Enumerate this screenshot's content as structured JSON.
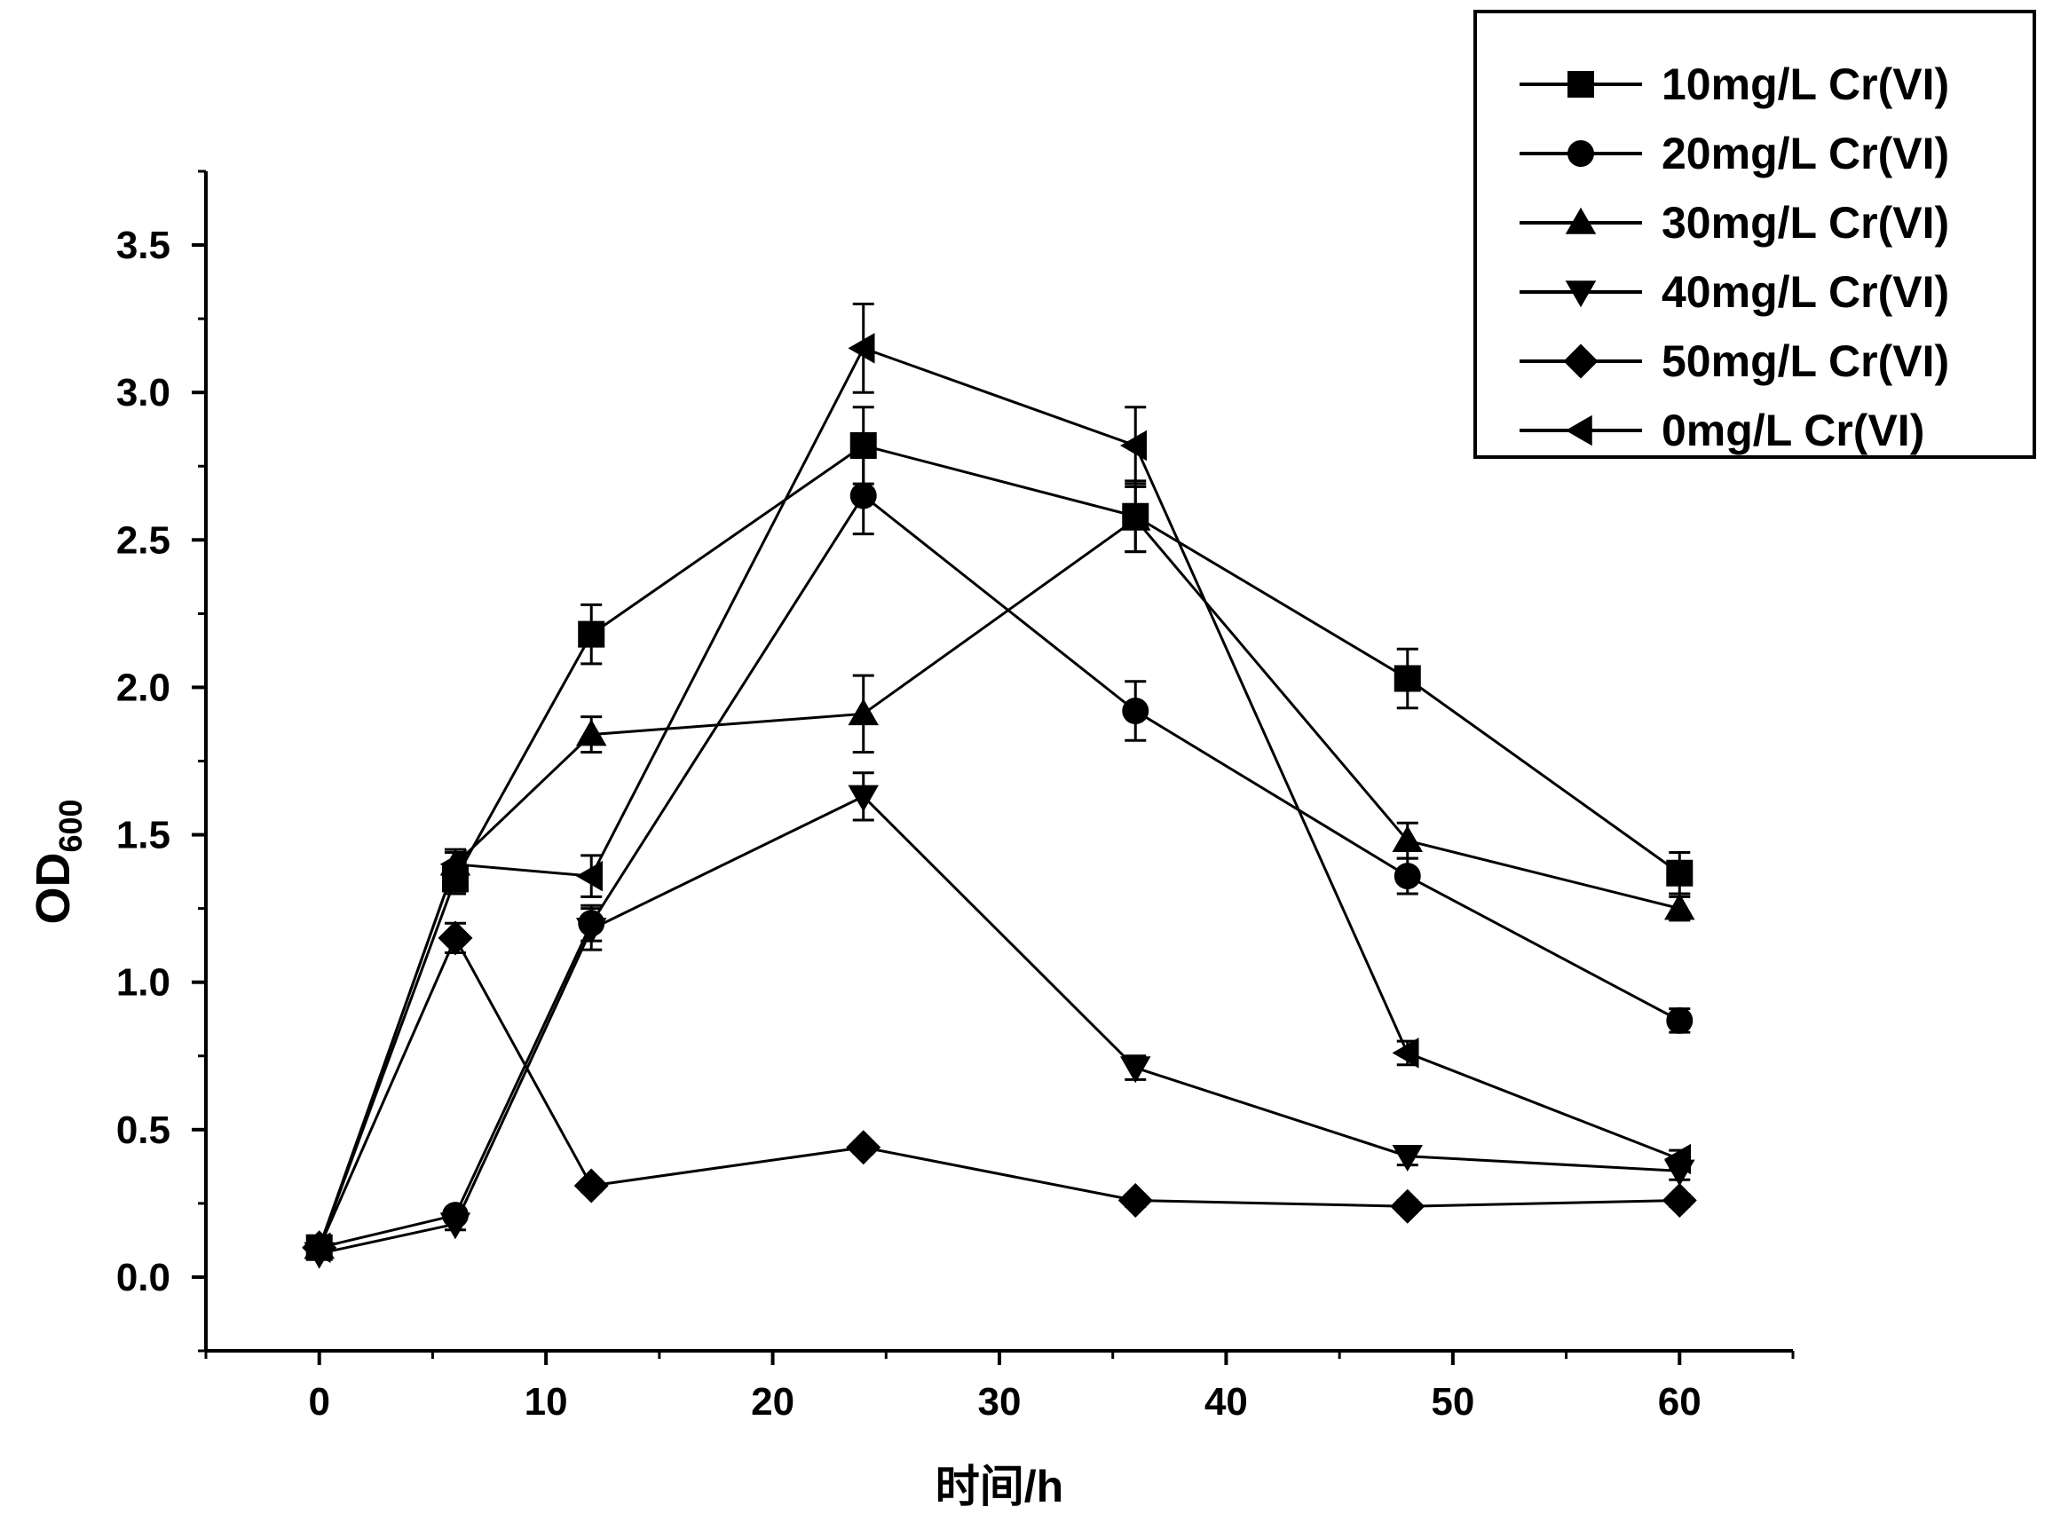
{
  "chart_data": {
    "type": "line",
    "xlabel": "时间/h",
    "ylabel_main": "OD",
    "ylabel_sub": "600",
    "xlim": [
      -5,
      65
    ],
    "ylim": [
      -0.25,
      3.75
    ],
    "xticks": [
      0,
      10,
      20,
      30,
      40,
      50,
      60
    ],
    "yticks": [
      0.0,
      0.5,
      1.0,
      1.5,
      2.0,
      2.5,
      3.0,
      3.5
    ],
    "xtick_labels": [
      "0",
      "10",
      "20",
      "30",
      "40",
      "50",
      "60"
    ],
    "ytick_labels": [
      "0.0",
      "0.5",
      "1.0",
      "1.5",
      "2.0",
      "2.5",
      "3.0",
      "3.5"
    ],
    "legend_position": "top-right",
    "x": [
      0,
      6,
      12,
      24,
      36,
      48,
      60
    ],
    "series": [
      {
        "name": "10mg/L Cr(VI)",
        "marker": "square",
        "values": [
          0.1,
          1.35,
          2.18,
          2.82,
          2.58,
          2.03,
          1.37
        ],
        "errors": [
          0.02,
          0.05,
          0.1,
          0.13,
          0.12,
          0.1,
          0.07
        ]
      },
      {
        "name": "20mg/L Cr(VI)",
        "marker": "circle",
        "values": [
          0.1,
          0.21,
          1.2,
          2.65,
          1.92,
          1.36,
          0.87
        ],
        "errors": [
          0.02,
          0.02,
          0.06,
          0.13,
          0.1,
          0.06,
          0.04
        ]
      },
      {
        "name": "30mg/L Cr(VI)",
        "marker": "triangle-up",
        "values": [
          0.1,
          1.4,
          1.84,
          1.91,
          2.57,
          1.48,
          1.25
        ],
        "errors": [
          0.02,
          0.04,
          0.06,
          0.13,
          0.11,
          0.06,
          0.04
        ]
      },
      {
        "name": "40mg/L Cr(VI)",
        "marker": "triangle-down",
        "values": [
          0.08,
          0.18,
          1.18,
          1.63,
          0.71,
          0.41,
          0.36
        ],
        "errors": [
          0.02,
          0.02,
          0.07,
          0.08,
          0.04,
          0.03,
          0.03
        ]
      },
      {
        "name": "50mg/L Cr(VI)",
        "marker": "diamond",
        "values": [
          0.1,
          1.15,
          0.31,
          0.44,
          0.26,
          0.24,
          0.26
        ],
        "errors": [
          0.02,
          0.05,
          0.02,
          0.02,
          0.02,
          0.02,
          0.02
        ]
      },
      {
        "name": "0mg/L   Cr(VI)",
        "marker": "triangle-left",
        "values": [
          0.1,
          1.4,
          1.36,
          3.15,
          2.82,
          0.76,
          0.4
        ],
        "errors": [
          0.02,
          0.05,
          0.07,
          0.15,
          0.13,
          0.04,
          0.03
        ]
      }
    ]
  }
}
